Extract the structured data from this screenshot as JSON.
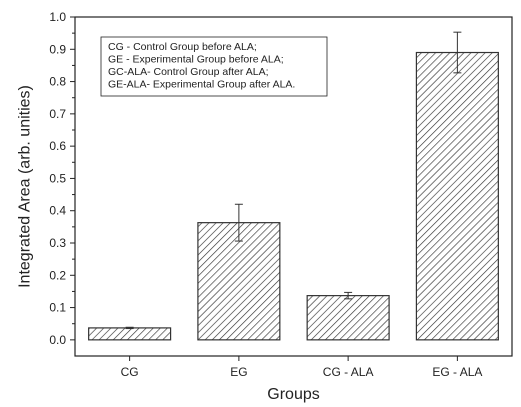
{
  "chart_data": {
    "type": "bar",
    "title": "",
    "xlabel": "Groups",
    "ylabel": "Integrated Area (arb. unities)",
    "categories": [
      "CG",
      "EG",
      "CG - ALA",
      "EG - ALA"
    ],
    "values": [
      0.037,
      0.363,
      0.137,
      0.89
    ],
    "errors": [
      0.002,
      0.057,
      0.01,
      0.063
    ],
    "ylim": [
      -0.05,
      1.0
    ],
    "yticks": [
      "0.0",
      "0.1",
      "0.2",
      "0.3",
      "0.4",
      "0.5",
      "0.6",
      "0.7",
      "0.8",
      "0.9",
      "1.0"
    ],
    "grid": false,
    "bar_fill": "diagonal hatch",
    "bar_color": "#333333",
    "legend_position": "top-left",
    "legend": [
      "CG - Control Group before ALA;",
      "GE - Experimental Group before ALA;",
      "GC-ALA- Control Group after ALA;",
      "GE-ALA- Experimental Group after ALA."
    ]
  }
}
